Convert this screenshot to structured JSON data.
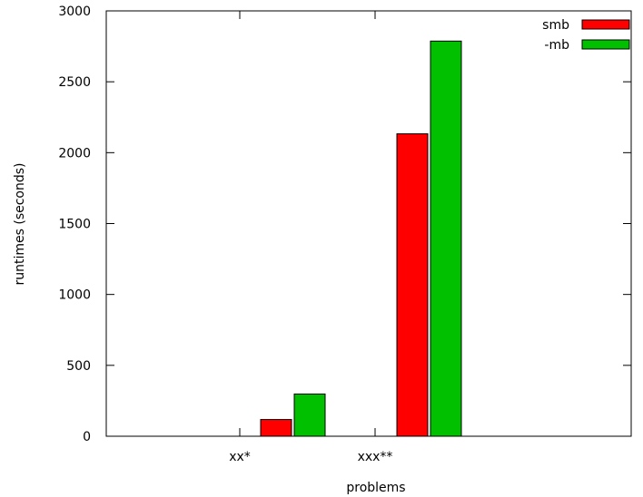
{
  "chart_data": {
    "type": "bar",
    "categories": [
      "xx*",
      "xxx**"
    ],
    "series": [
      {
        "name": "smb",
        "color": "#ff0000",
        "values": [
          118,
          2133
        ]
      },
      {
        "name": "-mb",
        "color": "#00c000",
        "values": [
          298,
          2787
        ]
      }
    ],
    "xlabel": "problems",
    "ylabel": "runtimes (seconds)",
    "ylim": [
      0,
      3000
    ],
    "yticks": [
      0,
      500,
      1000,
      1500,
      2000,
      2500,
      3000
    ],
    "grid": false,
    "legend_position": "top-right"
  }
}
